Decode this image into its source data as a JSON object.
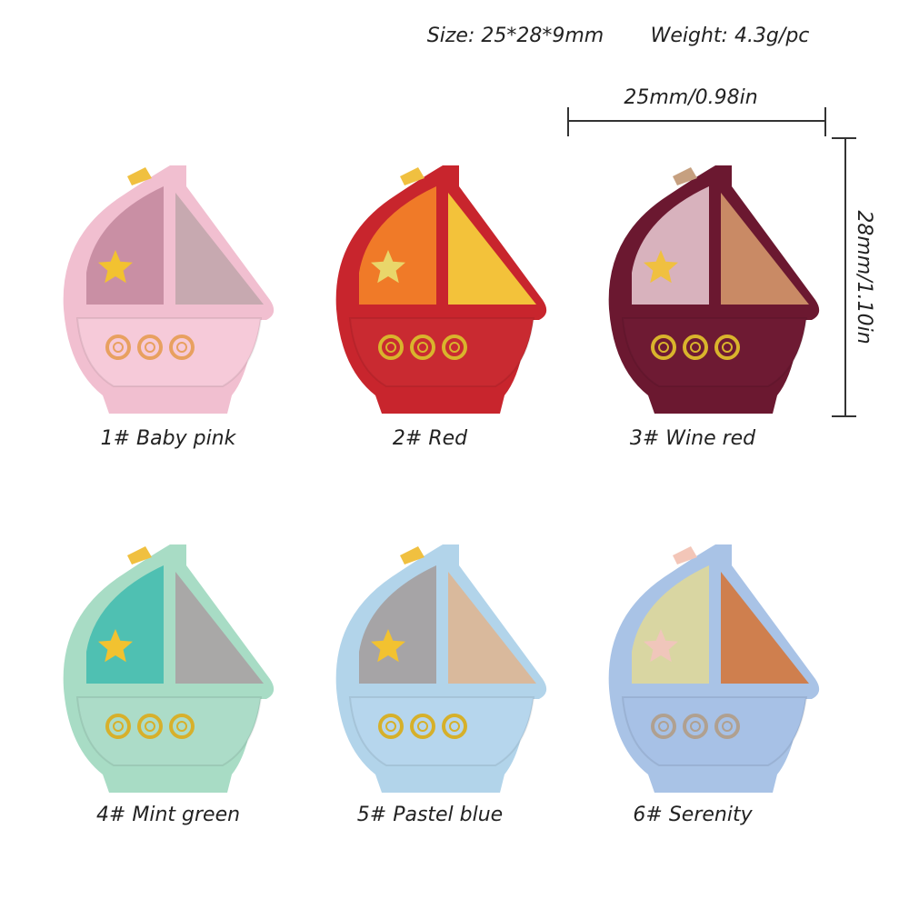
{
  "header": {
    "size": "Size: 25*28*9mm",
    "weight": "Weight: 4.3g/pc"
  },
  "dimensions": {
    "width": "25mm/0.98in",
    "height": "28mm/1.10in"
  },
  "items": [
    "1# Baby pink",
    "2# Red",
    "3# Wine red",
    "4# Mint green",
    "5# Pastel blue",
    "6# Serenity"
  ]
}
